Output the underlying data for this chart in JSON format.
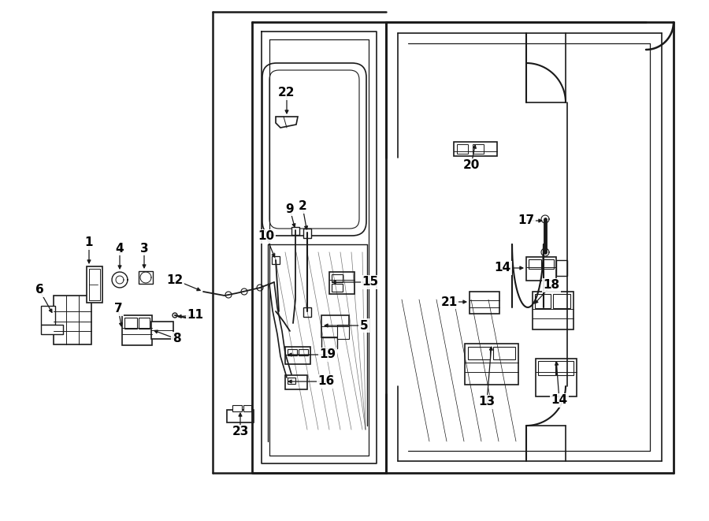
{
  "bg_color": "#ffffff",
  "line_color": "#1a1a1a",
  "text_color": "#000000",
  "fig_width": 9.0,
  "fig_height": 6.61,
  "dpi": 100
}
